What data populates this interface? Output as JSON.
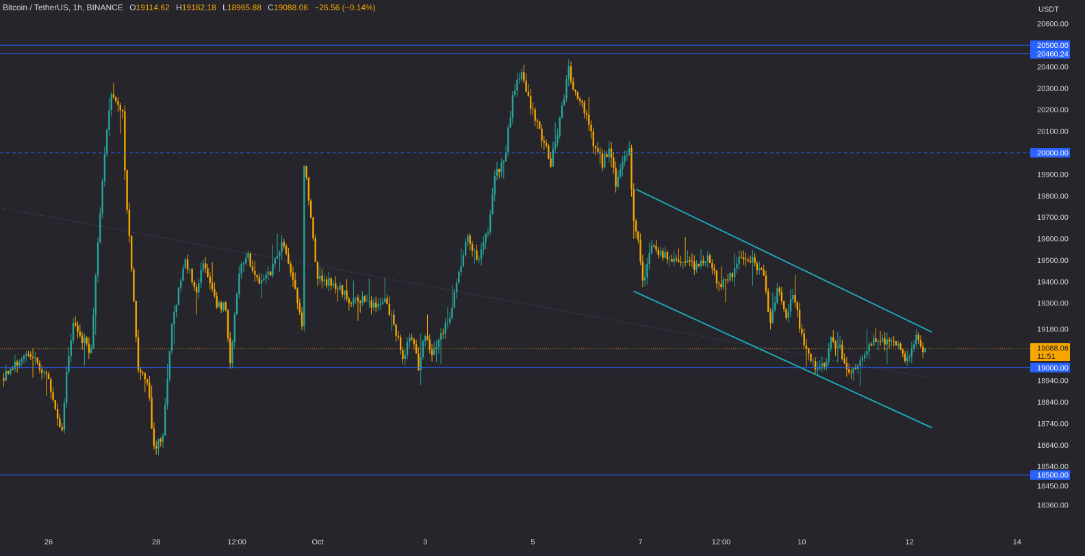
{
  "header": {
    "symbol": "Bitcoin / TetherUS, 1h, BINANCE",
    "open_label": "O",
    "open": "19114.62",
    "high_label": "H",
    "high": "19182.18",
    "low_label": "L",
    "low": "18965.88",
    "close_label": "C",
    "close": "19088.06",
    "change": "−26.56 (−0.14%)"
  },
  "chart_data": {
    "type": "candlestick",
    "currency": "USDT",
    "ylim": [
      18290,
      20680
    ],
    "y_ticks": [
      20600,
      20500,
      20400,
      20300,
      20200,
      20100,
      20000,
      19900,
      19800,
      19700,
      19600,
      19500,
      19400,
      19300,
      19180,
      19000,
      18940,
      18840,
      18740,
      18640,
      18540,
      18450,
      18360
    ],
    "x_ticks": [
      {
        "label": "26",
        "t": 0
      },
      {
        "label": "28",
        "t": 48
      },
      {
        "label": "12:00",
        "t": 84
      },
      {
        "label": "Oct",
        "t": 120
      },
      {
        "label": "3",
        "t": 168
      },
      {
        "label": "5",
        "t": 216
      },
      {
        "label": "7",
        "t": 264
      },
      {
        "label": "12:00",
        "t": 300
      },
      {
        "label": "10",
        "t": 336
      },
      {
        "label": "12",
        "t": 384
      },
      {
        "label": "14",
        "t": 432
      }
    ],
    "last_price": {
      "value": 19088.06,
      "label": "19088.06",
      "countdown": "11:51"
    },
    "horizontal_levels": [
      {
        "value": 20500,
        "label": "20500.00",
        "style": "solid"
      },
      {
        "value": 20460.24,
        "label": "20460.24",
        "style": "solid"
      },
      {
        "value": 20000,
        "label": "20000.00",
        "style": "dashed"
      },
      {
        "value": 19000,
        "label": "19000.00",
        "style": "solid"
      },
      {
        "value": 18500,
        "label": "18500.00",
        "style": "solid"
      }
    ],
    "trend_channel": [
      {
        "start": {
          "t": 262,
          "price": 19830
        },
        "end": {
          "t": 394,
          "price": 19165
        }
      },
      {
        "start": {
          "t": 261,
          "price": 19355
        },
        "end": {
          "t": 394,
          "price": 18720
        }
      }
    ],
    "median_dashed": {
      "start": {
        "t": -20,
        "price": 19740
      },
      "end": {
        "t": 394,
        "price": 18950
      }
    },
    "candle_range": {
      "start_t": -20,
      "end_t": 391
    },
    "anchors": [
      {
        "t": -20,
        "price": 18950
      },
      {
        "t": -8,
        "price": 19080
      },
      {
        "t": 0,
        "price": 18960
      },
      {
        "t": 5,
        "price": 18780
      },
      {
        "t": 7,
        "price": 18700
      },
      {
        "t": 9,
        "price": 19000
      },
      {
        "t": 12,
        "price": 19200
      },
      {
        "t": 20,
        "price": 19070
      },
      {
        "t": 23,
        "price": 19600
      },
      {
        "t": 26,
        "price": 20000
      },
      {
        "t": 29,
        "price": 20280
      },
      {
        "t": 34,
        "price": 20200
      },
      {
        "t": 35,
        "price": 19900
      },
      {
        "t": 41,
        "price": 18980
      },
      {
        "t": 45,
        "price": 18950
      },
      {
        "t": 48,
        "price": 18620
      },
      {
        "t": 52,
        "price": 18680
      },
      {
        "t": 54,
        "price": 18950
      },
      {
        "t": 56,
        "price": 19200
      },
      {
        "t": 62,
        "price": 19500
      },
      {
        "t": 67,
        "price": 19350
      },
      {
        "t": 70,
        "price": 19500
      },
      {
        "t": 76,
        "price": 19300
      },
      {
        "t": 80,
        "price": 19280
      },
      {
        "t": 82,
        "price": 19000
      },
      {
        "t": 86,
        "price": 19450
      },
      {
        "t": 90,
        "price": 19520
      },
      {
        "t": 95,
        "price": 19380
      },
      {
        "t": 100,
        "price": 19450
      },
      {
        "t": 105,
        "price": 19580
      },
      {
        "t": 110,
        "price": 19400
      },
      {
        "t": 114,
        "price": 19200
      },
      {
        "t": 115,
        "price": 19960
      },
      {
        "t": 118,
        "price": 19680
      },
      {
        "t": 121,
        "price": 19430
      },
      {
        "t": 125,
        "price": 19400
      },
      {
        "t": 131,
        "price": 19380
      },
      {
        "t": 135,
        "price": 19300
      },
      {
        "t": 141,
        "price": 19310
      },
      {
        "t": 146,
        "price": 19280
      },
      {
        "t": 151,
        "price": 19310
      },
      {
        "t": 155,
        "price": 19200
      },
      {
        "t": 159,
        "price": 19050
      },
      {
        "t": 163,
        "price": 19150
      },
      {
        "t": 166,
        "price": 19010
      },
      {
        "t": 169,
        "price": 19150
      },
      {
        "t": 172,
        "price": 19050
      },
      {
        "t": 175,
        "price": 19150
      },
      {
        "t": 180,
        "price": 19220
      },
      {
        "t": 184,
        "price": 19450
      },
      {
        "t": 188,
        "price": 19600
      },
      {
        "t": 193,
        "price": 19500
      },
      {
        "t": 197,
        "price": 19650
      },
      {
        "t": 200,
        "price": 19900
      },
      {
        "t": 204,
        "price": 19950
      },
      {
        "t": 208,
        "price": 20250
      },
      {
        "t": 212,
        "price": 20390
      },
      {
        "t": 214,
        "price": 20300
      },
      {
        "t": 218,
        "price": 20150
      },
      {
        "t": 222,
        "price": 20050
      },
      {
        "t": 225,
        "price": 19950
      },
      {
        "t": 229,
        "price": 20150
      },
      {
        "t": 233,
        "price": 20380
      },
      {
        "t": 236,
        "price": 20280
      },
      {
        "t": 240,
        "price": 20200
      },
      {
        "t": 244,
        "price": 20050
      },
      {
        "t": 248,
        "price": 19950
      },
      {
        "t": 251,
        "price": 20020
      },
      {
        "t": 254,
        "price": 19850
      },
      {
        "t": 257,
        "price": 19950
      },
      {
        "t": 260,
        "price": 20000
      },
      {
        "t": 262,
        "price": 19700
      },
      {
        "t": 264,
        "price": 19600
      },
      {
        "t": 266,
        "price": 19400
      },
      {
        "t": 270,
        "price": 19560
      },
      {
        "t": 275,
        "price": 19520
      },
      {
        "t": 280,
        "price": 19510
      },
      {
        "t": 285,
        "price": 19480
      },
      {
        "t": 290,
        "price": 19470
      },
      {
        "t": 295,
        "price": 19500
      },
      {
        "t": 300,
        "price": 19380
      },
      {
        "t": 305,
        "price": 19420
      },
      {
        "t": 310,
        "price": 19520
      },
      {
        "t": 315,
        "price": 19500
      },
      {
        "t": 320,
        "price": 19440
      },
      {
        "t": 323,
        "price": 19200
      },
      {
        "t": 326,
        "price": 19360
      },
      {
        "t": 330,
        "price": 19250
      },
      {
        "t": 333,
        "price": 19350
      },
      {
        "t": 336,
        "price": 19200
      },
      {
        "t": 340,
        "price": 19050
      },
      {
        "t": 343,
        "price": 19000
      },
      {
        "t": 347,
        "price": 19000
      },
      {
        "t": 350,
        "price": 19120
      },
      {
        "t": 354,
        "price": 19100
      },
      {
        "t": 357,
        "price": 18980
      },
      {
        "t": 360,
        "price": 18990
      },
      {
        "t": 363,
        "price": 19030
      },
      {
        "t": 366,
        "price": 19080
      },
      {
        "t": 370,
        "price": 19140
      },
      {
        "t": 373,
        "price": 19120
      },
      {
        "t": 376,
        "price": 19130
      },
      {
        "t": 380,
        "price": 19090
      },
      {
        "t": 384,
        "price": 19040
      },
      {
        "t": 388,
        "price": 19140
      },
      {
        "t": 391,
        "price": 19088
      }
    ],
    "up_color": "#26a69a",
    "down_color": "#f7a600",
    "level_color": "#2962ff",
    "channel_color": "#1ca7b5"
  }
}
